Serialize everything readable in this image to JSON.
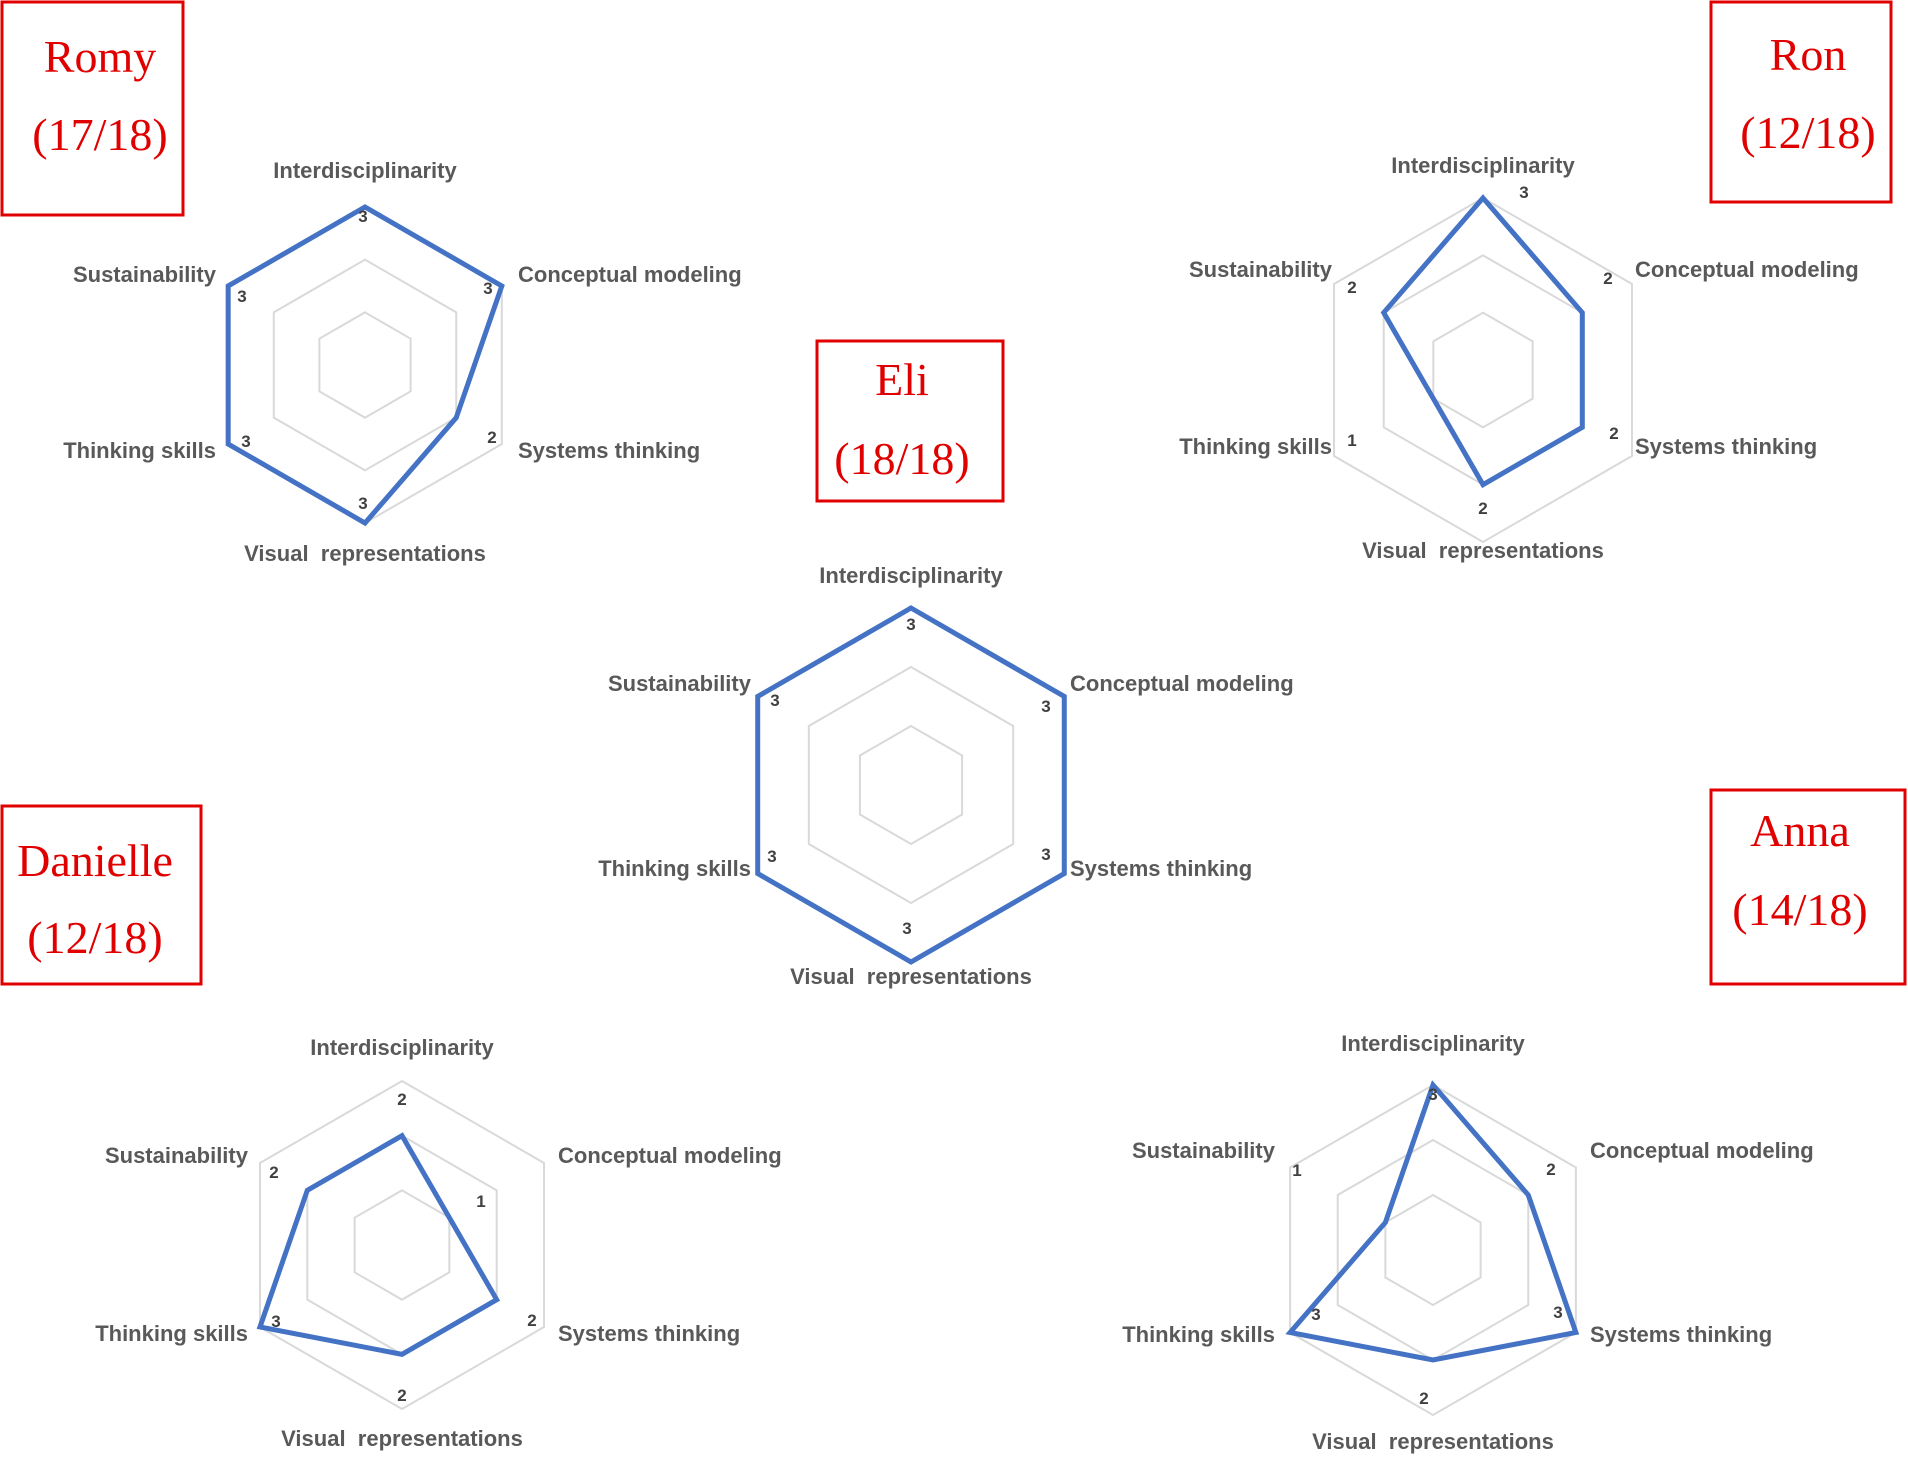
{
  "chart_data": [
    {
      "type": "radar",
      "name": "Romy",
      "score": "(17/18)",
      "axes": [
        "Interdisciplinarity",
        "Conceptual modeling",
        "Systems thinking",
        "Visual  representations",
        "Thinking skills",
        "Sustainability"
      ],
      "values": [
        3,
        3,
        2,
        3,
        3,
        3
      ],
      "rmax": 3,
      "grid_levels": [
        1,
        2,
        3
      ]
    },
    {
      "type": "radar",
      "name": "Ron",
      "score": "(12/18)",
      "axes": [
        "Interdisciplinarity",
        "Conceptual modeling",
        "Systems thinking",
        "Visual  representations",
        "Thinking skills",
        "Sustainability"
      ],
      "values": [
        3,
        2,
        2,
        2,
        1,
        2
      ],
      "rmax": 3,
      "grid_levels": [
        1,
        2,
        3
      ]
    },
    {
      "type": "radar",
      "name": "Eli",
      "score": "(18/18)",
      "axes": [
        "Interdisciplinarity",
        "Conceptual modeling",
        "Systems thinking",
        "Visual  representations",
        "Thinking skills",
        "Sustainability"
      ],
      "values": [
        3,
        3,
        3,
        3,
        3,
        3
      ],
      "rmax": 3,
      "grid_levels": [
        1,
        2,
        3
      ]
    },
    {
      "type": "radar",
      "name": "Danielle",
      "score": "(12/18)",
      "axes": [
        "Interdisciplinarity",
        "Conceptual modeling",
        "Systems thinking",
        "Visual  representations",
        "Thinking skills",
        "Sustainability"
      ],
      "values": [
        2,
        1,
        2,
        2,
        3,
        2
      ],
      "rmax": 3,
      "grid_levels": [
        1,
        2,
        3
      ]
    },
    {
      "type": "radar",
      "name": "Anna",
      "score": "(14/18)",
      "axes": [
        "Interdisciplinarity",
        "Conceptual modeling",
        "Systems thinking",
        "Visual  representations",
        "Thinking skills",
        "Sustainability"
      ],
      "values": [
        3,
        2,
        3,
        2,
        3,
        1
      ],
      "rmax": 3,
      "grid_levels": [
        1,
        2,
        3
      ]
    }
  ],
  "colors": {
    "series": "#4472c4",
    "grid": "#d9d9d9",
    "name_box": "#e00000",
    "axis_text": "#595959",
    "value_text": "#404040"
  }
}
